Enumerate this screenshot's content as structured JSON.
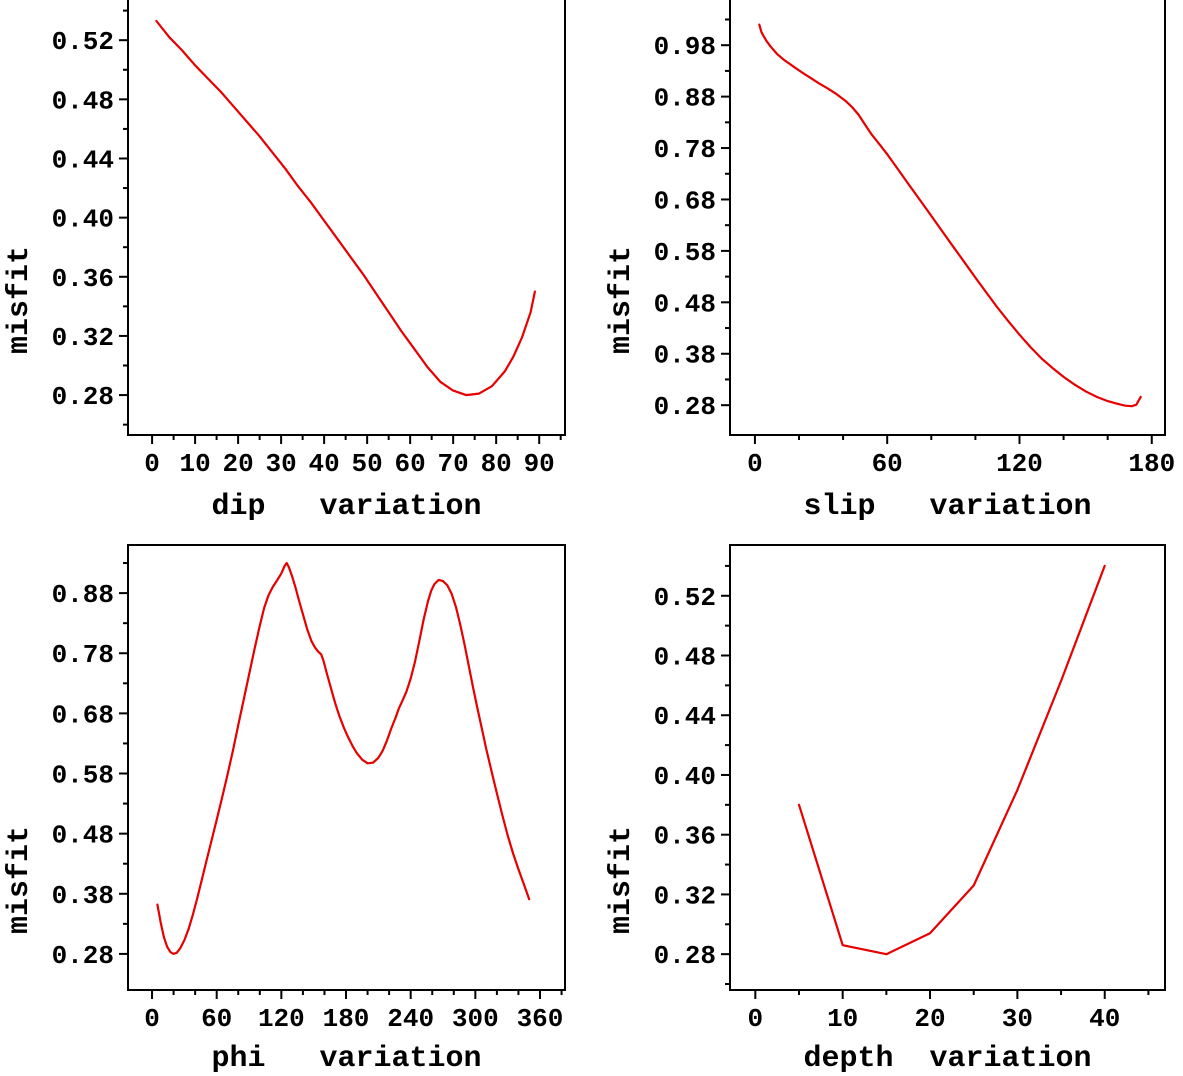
{
  "colors": {
    "curve": "#e60000",
    "axis": "#000000",
    "background": "#ffffff"
  },
  "chart_data": [
    {
      "id": "dip",
      "type": "line",
      "title": "",
      "xlabel": "dip   variation",
      "ylabel": "misfit",
      "line_color": "#e60000",
      "xlim": [
        -5.6,
        96
      ],
      "ylim": [
        0.253,
        0.558
      ],
      "grid": false,
      "legend": "none",
      "xticks": {
        "values": [
          0,
          10,
          20,
          30,
          40,
          50,
          60,
          70,
          80,
          90
        ],
        "labels": [
          "0",
          "10",
          "20",
          "30",
          "40",
          "50",
          "60",
          "70",
          "80",
          "90"
        ],
        "minor": [
          5,
          15,
          25,
          35,
          45,
          55,
          65,
          75,
          85,
          95
        ]
      },
      "yticks": {
        "values": [
          0.28,
          0.32,
          0.36,
          0.4,
          0.44,
          0.48,
          0.52
        ],
        "labels": [
          "0.28",
          "0.32",
          "0.36",
          "0.40",
          "0.44",
          "0.48",
          "0.52"
        ],
        "minor": [
          0.26,
          0.3,
          0.34,
          0.38,
          0.42,
          0.46,
          0.5,
          0.54
        ]
      },
      "points": [
        [
          1,
          0.533
        ],
        [
          4,
          0.522
        ],
        [
          7,
          0.513
        ],
        [
          10,
          0.503
        ],
        [
          13,
          0.494
        ],
        [
          16,
          0.485
        ],
        [
          19,
          0.475
        ],
        [
          22,
          0.465
        ],
        [
          25,
          0.455
        ],
        [
          28,
          0.444
        ],
        [
          31,
          0.433
        ],
        [
          34,
          0.421
        ],
        [
          37,
          0.41
        ],
        [
          40,
          0.398
        ],
        [
          43,
          0.386
        ],
        [
          46,
          0.374
        ],
        [
          49,
          0.362
        ],
        [
          52,
          0.349
        ],
        [
          55,
          0.336
        ],
        [
          58,
          0.323
        ],
        [
          61,
          0.311
        ],
        [
          64,
          0.299
        ],
        [
          67,
          0.289
        ],
        [
          70,
          0.283
        ],
        [
          73,
          0.28
        ],
        [
          76,
          0.281
        ],
        [
          79,
          0.286
        ],
        [
          82,
          0.296
        ],
        [
          84,
          0.306
        ],
        [
          86,
          0.319
        ],
        [
          88,
          0.336
        ],
        [
          89,
          0.35
        ]
      ]
    },
    {
      "id": "slip",
      "type": "line",
      "title": "",
      "xlabel": "slip   variation",
      "ylabel": "misfit",
      "line_color": "#e60000",
      "xlim": [
        -11.3,
        186
      ],
      "ylim": [
        0.222,
        1.099
      ],
      "grid": false,
      "legend": "none",
      "xticks": {
        "values": [
          0,
          60,
          120,
          180
        ],
        "labels": [
          "0",
          "60",
          "120",
          "180"
        ],
        "minor": [
          20,
          40,
          80,
          100,
          140,
          160
        ]
      },
      "yticks": {
        "values": [
          0.28,
          0.38,
          0.48,
          0.58,
          0.68,
          0.78,
          0.88,
          0.98
        ],
        "labels": [
          "0.28",
          "0.38",
          "0.48",
          "0.58",
          "0.68",
          "0.78",
          "0.88",
          "0.98"
        ],
        "minor": [
          0.33,
          0.43,
          0.53,
          0.63,
          0.73,
          0.83,
          0.93,
          1.03
        ]
      },
      "points": [
        [
          2,
          1.02
        ],
        [
          3,
          1.005
        ],
        [
          5,
          0.99
        ],
        [
          7,
          0.978
        ],
        [
          10,
          0.963
        ],
        [
          13,
          0.952
        ],
        [
          17,
          0.94
        ],
        [
          21,
          0.928
        ],
        [
          25,
          0.917
        ],
        [
          29,
          0.906
        ],
        [
          33,
          0.896
        ],
        [
          37,
          0.885
        ],
        [
          41,
          0.872
        ],
        [
          44,
          0.86
        ],
        [
          47,
          0.845
        ],
        [
          50,
          0.825
        ],
        [
          53,
          0.806
        ],
        [
          56,
          0.79
        ],
        [
          60,
          0.768
        ],
        [
          65,
          0.738
        ],
        [
          70,
          0.708
        ],
        [
          75,
          0.678
        ],
        [
          80,
          0.648
        ],
        [
          85,
          0.618
        ],
        [
          90,
          0.588
        ],
        [
          95,
          0.558
        ],
        [
          100,
          0.528
        ],
        [
          105,
          0.499
        ],
        [
          110,
          0.47
        ],
        [
          115,
          0.443
        ],
        [
          120,
          0.417
        ],
        [
          125,
          0.393
        ],
        [
          130,
          0.371
        ],
        [
          135,
          0.352
        ],
        [
          140,
          0.335
        ],
        [
          145,
          0.32
        ],
        [
          150,
          0.307
        ],
        [
          155,
          0.296
        ],
        [
          160,
          0.288
        ],
        [
          164,
          0.283
        ],
        [
          168,
          0.279
        ],
        [
          171,
          0.278
        ],
        [
          173,
          0.281
        ],
        [
          175,
          0.296
        ]
      ]
    },
    {
      "id": "phi",
      "type": "line",
      "title": "",
      "xlabel": "phi   variation",
      "ylabel": "misfit",
      "line_color": "#e60000",
      "xlim": [
        -22.3,
        383.2
      ],
      "ylim": [
        0.22,
        0.96
      ],
      "grid": false,
      "legend": "none",
      "xticks": {
        "values": [
          0,
          60,
          120,
          180,
          240,
          300,
          360
        ],
        "labels": [
          "0",
          "60",
          "120",
          "180",
          "240",
          "300",
          "360"
        ],
        "minor": [
          20,
          40,
          80,
          100,
          140,
          160,
          200,
          220,
          260,
          280,
          320,
          340,
          380
        ]
      },
      "yticks": {
        "values": [
          0.28,
          0.38,
          0.48,
          0.58,
          0.68,
          0.78,
          0.88
        ],
        "labels": [
          "0.28",
          "0.38",
          "0.48",
          "0.58",
          "0.68",
          "0.78",
          "0.88"
        ],
        "minor": [
          0.33,
          0.43,
          0.53,
          0.63,
          0.73,
          0.83,
          0.93
        ]
      },
      "points": [
        [
          5,
          0.362
        ],
        [
          8,
          0.332
        ],
        [
          11,
          0.308
        ],
        [
          14,
          0.292
        ],
        [
          17,
          0.283
        ],
        [
          20,
          0.28
        ],
        [
          23,
          0.282
        ],
        [
          26,
          0.289
        ],
        [
          30,
          0.303
        ],
        [
          34,
          0.322
        ],
        [
          38,
          0.346
        ],
        [
          42,
          0.373
        ],
        [
          46,
          0.402
        ],
        [
          50,
          0.431
        ],
        [
          55,
          0.467
        ],
        [
          60,
          0.503
        ],
        [
          65,
          0.54
        ],
        [
          70,
          0.578
        ],
        [
          75,
          0.618
        ],
        [
          80,
          0.66
        ],
        [
          85,
          0.702
        ],
        [
          90,
          0.744
        ],
        [
          95,
          0.786
        ],
        [
          100,
          0.826
        ],
        [
          104,
          0.855
        ],
        [
          108,
          0.876
        ],
        [
          112,
          0.89
        ],
        [
          116,
          0.901
        ],
        [
          120,
          0.913
        ],
        [
          123,
          0.925
        ],
        [
          125,
          0.93
        ],
        [
          127,
          0.923
        ],
        [
          130,
          0.908
        ],
        [
          133,
          0.89
        ],
        [
          136,
          0.87
        ],
        [
          140,
          0.845
        ],
        [
          144,
          0.82
        ],
        [
          148,
          0.8
        ],
        [
          151,
          0.79
        ],
        [
          154,
          0.783
        ],
        [
          157,
          0.778
        ],
        [
          159,
          0.768
        ],
        [
          162,
          0.748
        ],
        [
          166,
          0.722
        ],
        [
          170,
          0.697
        ],
        [
          174,
          0.675
        ],
        [
          178,
          0.656
        ],
        [
          182,
          0.64
        ],
        [
          186,
          0.626
        ],
        [
          190,
          0.614
        ],
        [
          195,
          0.603
        ],
        [
          200,
          0.597
        ],
        [
          205,
          0.598
        ],
        [
          210,
          0.606
        ],
        [
          214,
          0.618
        ],
        [
          218,
          0.635
        ],
        [
          222,
          0.655
        ],
        [
          226,
          0.673
        ],
        [
          229,
          0.688
        ],
        [
          232,
          0.7
        ],
        [
          236,
          0.716
        ],
        [
          240,
          0.738
        ],
        [
          244,
          0.766
        ],
        [
          248,
          0.8
        ],
        [
          252,
          0.836
        ],
        [
          256,
          0.866
        ],
        [
          259,
          0.884
        ],
        [
          262,
          0.895
        ],
        [
          266,
          0.902
        ],
        [
          270,
          0.9
        ],
        [
          274,
          0.893
        ],
        [
          278,
          0.879
        ],
        [
          282,
          0.857
        ],
        [
          286,
          0.828
        ],
        [
          290,
          0.794
        ],
        [
          294,
          0.758
        ],
        [
          298,
          0.722
        ],
        [
          302,
          0.688
        ],
        [
          306,
          0.655
        ],
        [
          310,
          0.622
        ],
        [
          315,
          0.584
        ],
        [
          320,
          0.547
        ],
        [
          325,
          0.511
        ],
        [
          330,
          0.477
        ],
        [
          335,
          0.447
        ],
        [
          340,
          0.421
        ],
        [
          344,
          0.401
        ],
        [
          347,
          0.386
        ],
        [
          350,
          0.371
        ]
      ]
    },
    {
      "id": "depth",
      "type": "line",
      "title": "",
      "xlabel": "depth  variation",
      "ylabel": "misfit",
      "line_color": "#e60000",
      "xlim": [
        -2.9,
        46.9
      ],
      "ylim": [
        0.256,
        0.554
      ],
      "grid": false,
      "legend": "none",
      "xticks": {
        "values": [
          0,
          10,
          20,
          30,
          40
        ],
        "labels": [
          "0",
          "10",
          "20",
          "30",
          "40"
        ],
        "minor": [
          5,
          15,
          25,
          35,
          45
        ]
      },
      "yticks": {
        "values": [
          0.28,
          0.32,
          0.36,
          0.4,
          0.44,
          0.48,
          0.52
        ],
        "labels": [
          "0.28",
          "0.32",
          "0.36",
          "0.40",
          "0.44",
          "0.48",
          "0.52"
        ],
        "minor": [
          0.26,
          0.3,
          0.34,
          0.38,
          0.42,
          0.46,
          0.5,
          0.54
        ]
      },
      "points": [
        [
          5,
          0.38
        ],
        [
          10,
          0.286
        ],
        [
          15,
          0.28
        ],
        [
          20,
          0.294
        ],
        [
          25,
          0.326
        ],
        [
          30,
          0.39
        ],
        [
          35,
          0.463
        ],
        [
          40,
          0.54
        ]
      ]
    }
  ]
}
